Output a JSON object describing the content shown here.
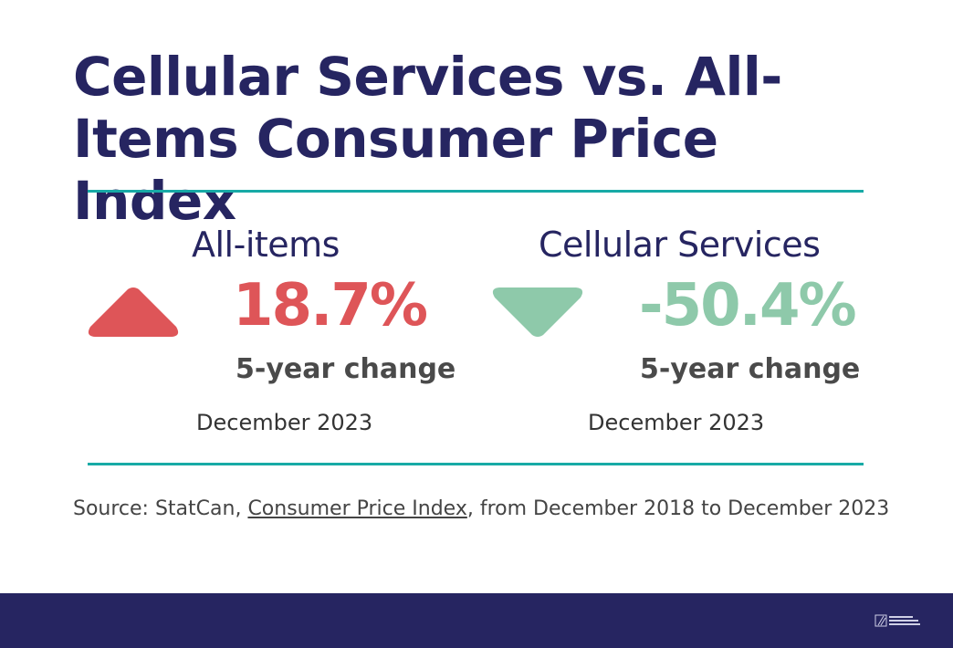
{
  "title": "Cellular Services vs. All-Items Consumer Price Index",
  "colors": {
    "title": "#262561",
    "rule": "#17aaa6",
    "increase": "#de5558",
    "decrease": "#8ec9aa",
    "footer": "#262561"
  },
  "metrics": [
    {
      "label": "All-items",
      "value": "18.7%",
      "direction": "up",
      "arrow_icon": "triangle-up-icon",
      "period": "5-year change",
      "date": "December 2023"
    },
    {
      "label": "Cellular Services",
      "value": "-50.4%",
      "direction": "down",
      "arrow_icon": "triangle-down-icon",
      "period": "5-year change",
      "date": "December 2023"
    }
  ],
  "source": {
    "prefix": "Source: StatCan, ",
    "link_text": "Consumer Price Index",
    "suffix": ", from December 2018 to December 2023"
  },
  "footer": {
    "logo_icon": "organization-logo-icon"
  }
}
